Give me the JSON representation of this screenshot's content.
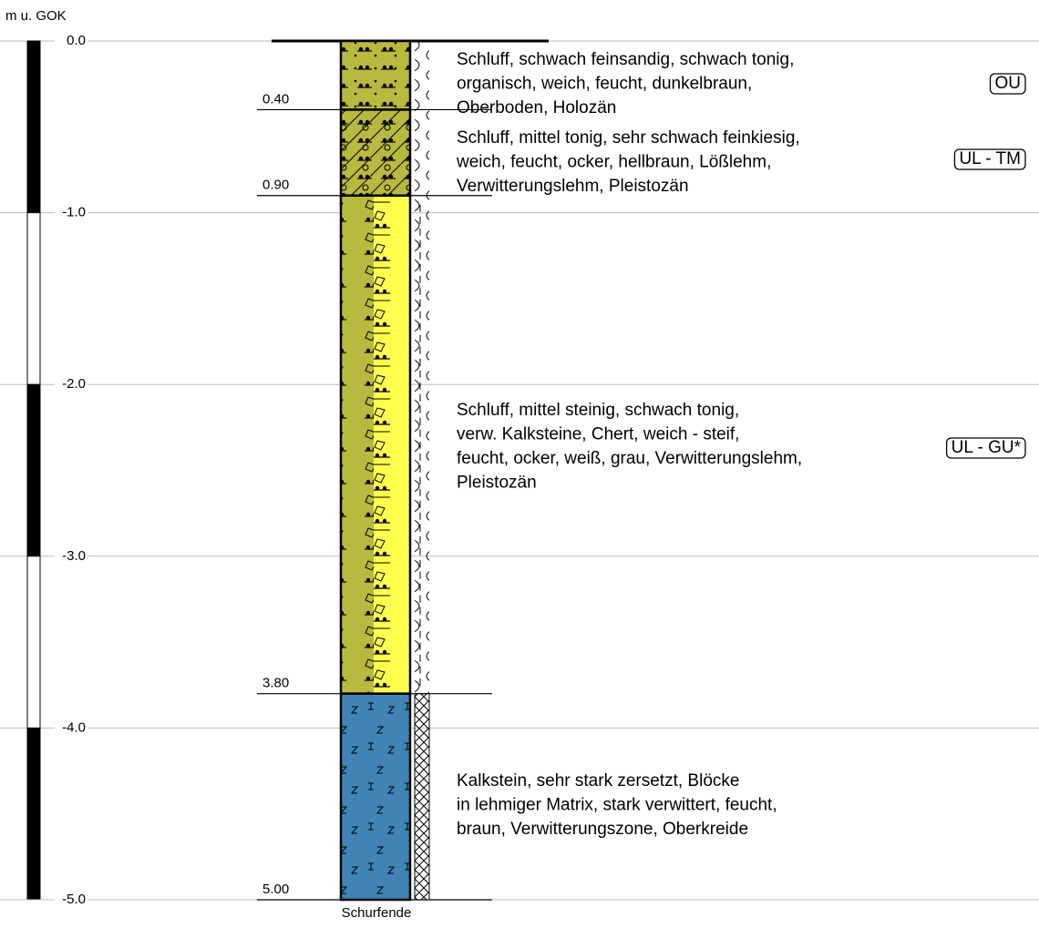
{
  "axis": {
    "label": "m u. GOK",
    "ticks": [
      {
        "value": 0,
        "label": "0.0"
      },
      {
        "value": -1,
        "label": "-1.0"
      },
      {
        "value": -2,
        "label": "-2.0"
      },
      {
        "value": -3,
        "label": "-3.0"
      },
      {
        "value": -4,
        "label": "-4.0"
      },
      {
        "value": -5,
        "label": "-5.0"
      }
    ]
  },
  "layers": [
    {
      "bottom": {
        "value": 0.4,
        "label": "0.40"
      },
      "description": [
        "Schluff, schwach feinsandig, schwach tonig,",
        "organisch, weich, feucht, dunkelbraun,",
        "Oberboden, Holozän"
      ],
      "code": "OU"
    },
    {
      "bottom": {
        "value": 0.9,
        "label": "0.90"
      },
      "description": [
        "Schluff, mittel tonig, sehr schwach feinkiesig,",
        "weich, feucht, ocker, hellbraun, Lößlehm,",
        "Verwitterungslehm, Pleistozän"
      ],
      "code": "UL - TM"
    },
    {
      "bottom": {
        "value": 3.8,
        "label": "3.80"
      },
      "description": [
        "Schluff, mittel steinig, schwach tonig,",
        "verw. Kalksteine, Chert, weich - steif,",
        "feucht, ocker, weiß, grau, Verwitterungslehm,",
        "Pleistozän"
      ],
      "code": "UL - GU*"
    },
    {
      "bottom": {
        "value": 5.0,
        "label": "5.00"
      },
      "description": [
        "Kalkstein, sehr stark zersetzt, Blöcke",
        "in lehmiger Matrix, stark verwittert, feucht,",
        "braun, Verwitterungszone, Oberkreide"
      ]
    }
  ],
  "footer": "Schurfende"
}
